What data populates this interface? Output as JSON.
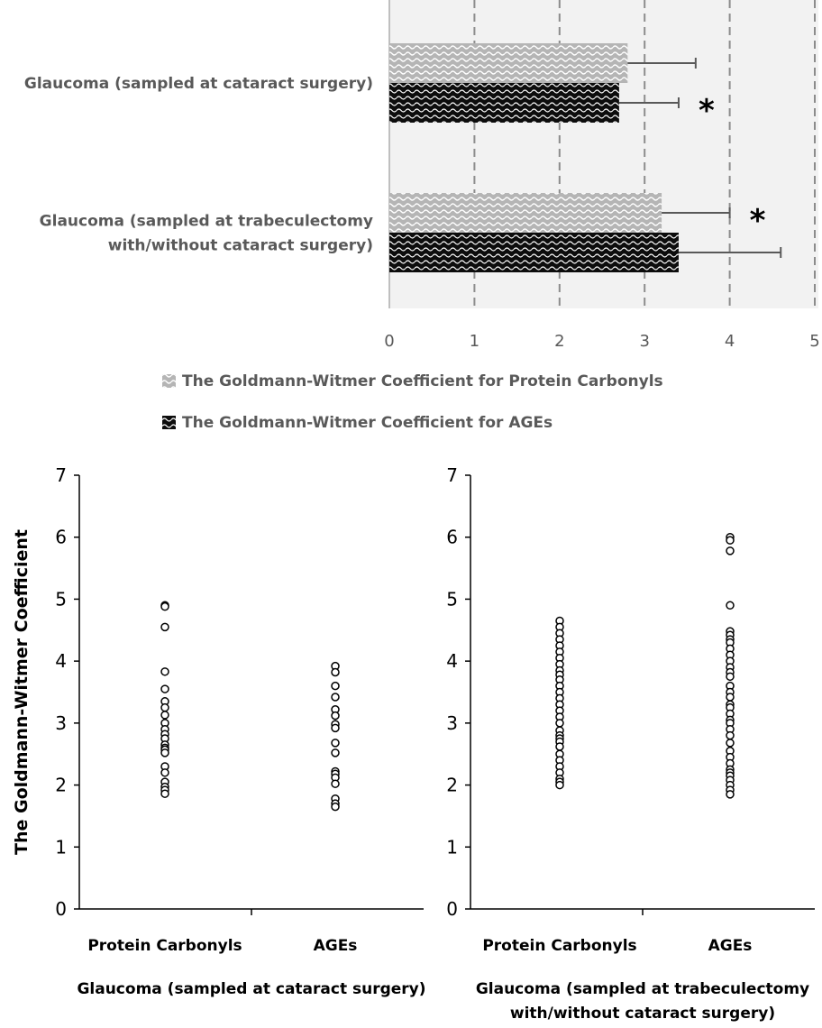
{
  "chart_data": [
    {
      "type": "bar",
      "orientation": "horizontal",
      "categories": [
        "Glaucoma (sampled at cataract surgery)",
        [
          "Glaucoma (sampled at trabeculectomy",
          "with/without cataract surgery)"
        ]
      ],
      "series": [
        {
          "name": "The Goldmann-Witmer Coefficient for Protein Carbonyls",
          "values": [
            2.8,
            3.2
          ],
          "errors": [
            0.8,
            0.8
          ],
          "color": "#9a9a9a"
        },
        {
          "name": "The Goldmann-Witmer Coefficient for AGEs",
          "values": [
            2.7,
            3.4
          ],
          "errors": [
            0.7,
            1.2
          ],
          "color": "#111111"
        }
      ],
      "significance": [
        "",
        "*",
        "*",
        ""
      ],
      "xlim": [
        0,
        5
      ],
      "xticks": [
        "0",
        "1",
        "2",
        "3",
        "4",
        "5"
      ],
      "grid": true,
      "legend_position": "bottom"
    },
    {
      "type": "scatter",
      "ylabel": "The Goldmann-Witmer Coefficient",
      "ylim": [
        0,
        7
      ],
      "yticks": [
        "0",
        "1",
        "2",
        "3",
        "4",
        "5",
        "6",
        "7"
      ],
      "title": "Glaucoma (sampled at cataract surgery)",
      "categories": [
        "Protein Carbonyls",
        "AGEs"
      ],
      "series": [
        {
          "category": "Protein Carbonyls",
          "values": [
            4.9,
            4.88,
            4.55,
            3.83,
            3.55,
            3.35,
            3.25,
            3.13,
            3.0,
            2.9,
            2.82,
            2.75,
            2.65,
            2.6,
            2.57,
            2.52,
            2.3,
            2.2,
            2.05,
            1.97,
            1.92,
            1.86
          ]
        },
        {
          "category": "AGEs",
          "values": [
            3.92,
            3.82,
            3.6,
            3.42,
            3.22,
            3.12,
            2.98,
            2.92,
            2.68,
            2.52,
            2.22,
            2.18,
            2.12,
            2.02,
            1.78,
            1.7,
            1.65
          ]
        }
      ]
    },
    {
      "type": "scatter",
      "ylim": [
        0,
        7
      ],
      "yticks": [
        "0",
        "1",
        "2",
        "3",
        "4",
        "5",
        "6",
        "7"
      ],
      "title": [
        "Glaucoma (sampled at trabeculectomy",
        "with/without cataract surgery)"
      ],
      "categories": [
        "Protein Carbonyls",
        "AGEs"
      ],
      "series": [
        {
          "category": "Protein Carbonyls",
          "values": [
            4.65,
            4.55,
            4.45,
            4.35,
            4.25,
            4.15,
            4.05,
            3.95,
            3.85,
            3.78,
            3.7,
            3.6,
            3.5,
            3.4,
            3.3,
            3.2,
            3.1,
            3.0,
            2.88,
            2.8,
            2.75,
            2.7,
            2.62,
            2.5,
            2.4,
            2.3,
            2.2,
            2.1,
            2.05,
            2.0
          ]
        },
        {
          "category": "AGEs",
          "values": [
            6.0,
            5.95,
            5.78,
            4.9,
            4.48,
            4.42,
            4.35,
            4.3,
            4.2,
            4.1,
            4.0,
            3.9,
            3.82,
            3.75,
            3.6,
            3.5,
            3.42,
            3.3,
            3.25,
            3.15,
            3.05,
            3.0,
            2.9,
            2.8,
            2.68,
            2.55,
            2.45,
            2.35,
            2.25,
            2.2,
            2.15,
            2.08,
            2.0,
            1.92,
            1.85
          ]
        }
      ]
    }
  ]
}
